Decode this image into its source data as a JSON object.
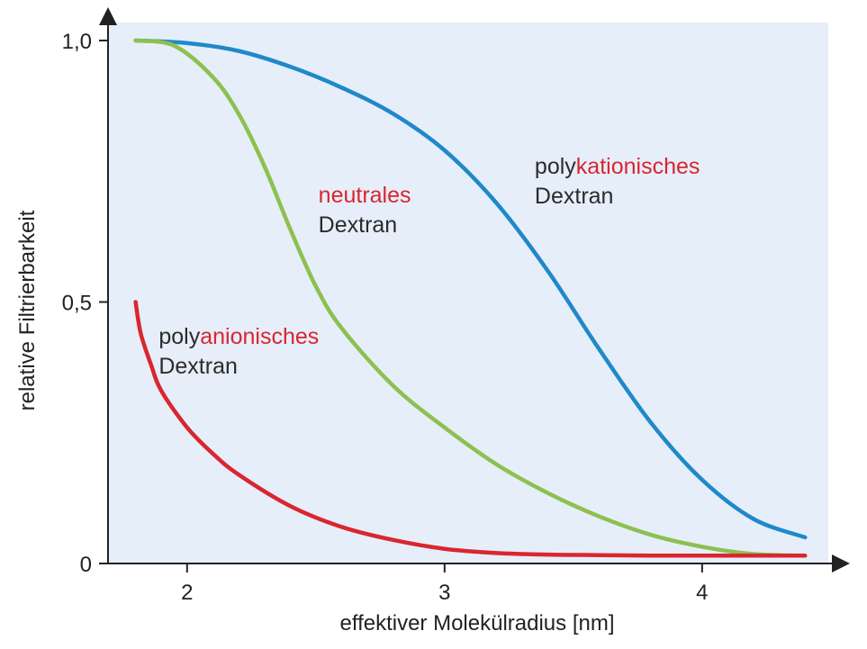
{
  "chart_data": {
    "type": "line",
    "xlabel": "effektiver Molekülradius [nm]",
    "ylabel": "relative Filtrierbarkeit",
    "xlim": [
      1.8,
      4.5
    ],
    "ylim": [
      0,
      1.0
    ],
    "xticks": [
      {
        "value": 2,
        "label": "2"
      },
      {
        "value": 3,
        "label": "3"
      },
      {
        "value": 4,
        "label": "4"
      }
    ],
    "yticks": [
      {
        "value": 0,
        "label": "0"
      },
      {
        "value": 0.5,
        "label": "0,5"
      },
      {
        "value": 1.0,
        "label": "1,0"
      }
    ],
    "grid": false,
    "background_color": "#e6eefa",
    "series": [
      {
        "id": "polykationisches",
        "color": "#1f89c9",
        "x": [
          1.8,
          2.0,
          2.2,
          2.4,
          2.6,
          2.8,
          3.0,
          3.2,
          3.4,
          3.6,
          3.8,
          4.0,
          4.2,
          4.4
        ],
        "y": [
          1.0,
          0.995,
          0.98,
          0.95,
          0.91,
          0.86,
          0.79,
          0.69,
          0.56,
          0.41,
          0.27,
          0.16,
          0.085,
          0.05
        ]
      },
      {
        "id": "neutrales",
        "color": "#8dc04f",
        "x": [
          1.8,
          1.95,
          2.1,
          2.2,
          2.3,
          2.4,
          2.5,
          2.6,
          2.8,
          3.0,
          3.2,
          3.4,
          3.6,
          3.8,
          4.0,
          4.2,
          4.4
        ],
        "y": [
          1.0,
          0.99,
          0.93,
          0.86,
          0.76,
          0.64,
          0.53,
          0.45,
          0.34,
          0.26,
          0.19,
          0.135,
          0.09,
          0.055,
          0.032,
          0.018,
          0.015
        ]
      },
      {
        "id": "polyanionisches",
        "color": "#d9262f",
        "x": [
          1.8,
          1.82,
          1.86,
          1.9,
          2.0,
          2.1,
          2.2,
          2.4,
          2.6,
          2.8,
          3.0,
          3.2,
          3.4,
          3.6,
          3.8,
          4.0,
          4.2,
          4.4
        ],
        "y": [
          0.5,
          0.44,
          0.38,
          0.33,
          0.26,
          0.21,
          0.17,
          0.11,
          0.07,
          0.045,
          0.028,
          0.02,
          0.017,
          0.016,
          0.015,
          0.015,
          0.015,
          0.015
        ]
      }
    ],
    "annotations": [
      {
        "id": "polykationisches",
        "anchor_x": 3.35,
        "anchor_y": 0.745,
        "line1_prefix": "poly",
        "line1_colored": "kationisches",
        "line2": "Dextran",
        "highlight_color": "#d9262f"
      },
      {
        "id": "neutrales",
        "anchor_x": 2.51,
        "anchor_y": 0.69,
        "line1_prefix": "",
        "line1_colored": "neutrales",
        "line2": "Dextran",
        "highlight_color": "#d9262f"
      },
      {
        "id": "polyanionisches",
        "anchor_x": 1.89,
        "anchor_y": 0.42,
        "line1_prefix": "poly",
        "line1_colored": "anionisches",
        "line2": "Dextran",
        "highlight_color": "#d9262f"
      }
    ]
  }
}
